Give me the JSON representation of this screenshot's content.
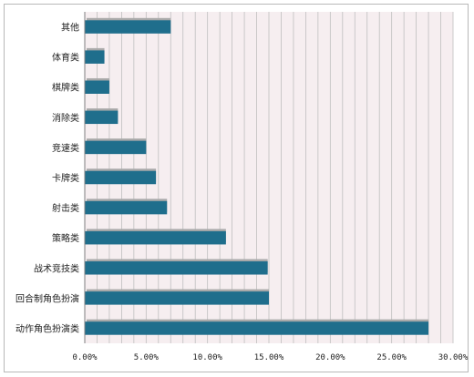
{
  "chart_data": {
    "type": "bar",
    "orientation": "horizontal",
    "categories": [
      "其他",
      "体育类",
      "棋牌类",
      "消除类",
      "竞速类",
      "卡牌类",
      "射击类",
      "策略类",
      "战术竞技类",
      "回合制角色扮演",
      "动作角色扮演类"
    ],
    "values": [
      7.0,
      1.6,
      2.0,
      2.7,
      5.0,
      5.8,
      6.7,
      11.5,
      14.9,
      15.0,
      28.0
    ],
    "unit": "%",
    "xlim": [
      0,
      30
    ],
    "x_ticks": [
      "0.00%",
      "5.00%",
      "10.00%",
      "15.00%",
      "20.00%",
      "25.00%",
      "30.00%"
    ],
    "grid": "vertical",
    "legend": "none",
    "title": "",
    "xlabel": "",
    "ylabel": "",
    "colors": {
      "bar": "#1f6e8c",
      "bar_shadow": "#a9a9a9",
      "plot_background": "#f6eef0",
      "grid": "#bfbfbf"
    }
  }
}
